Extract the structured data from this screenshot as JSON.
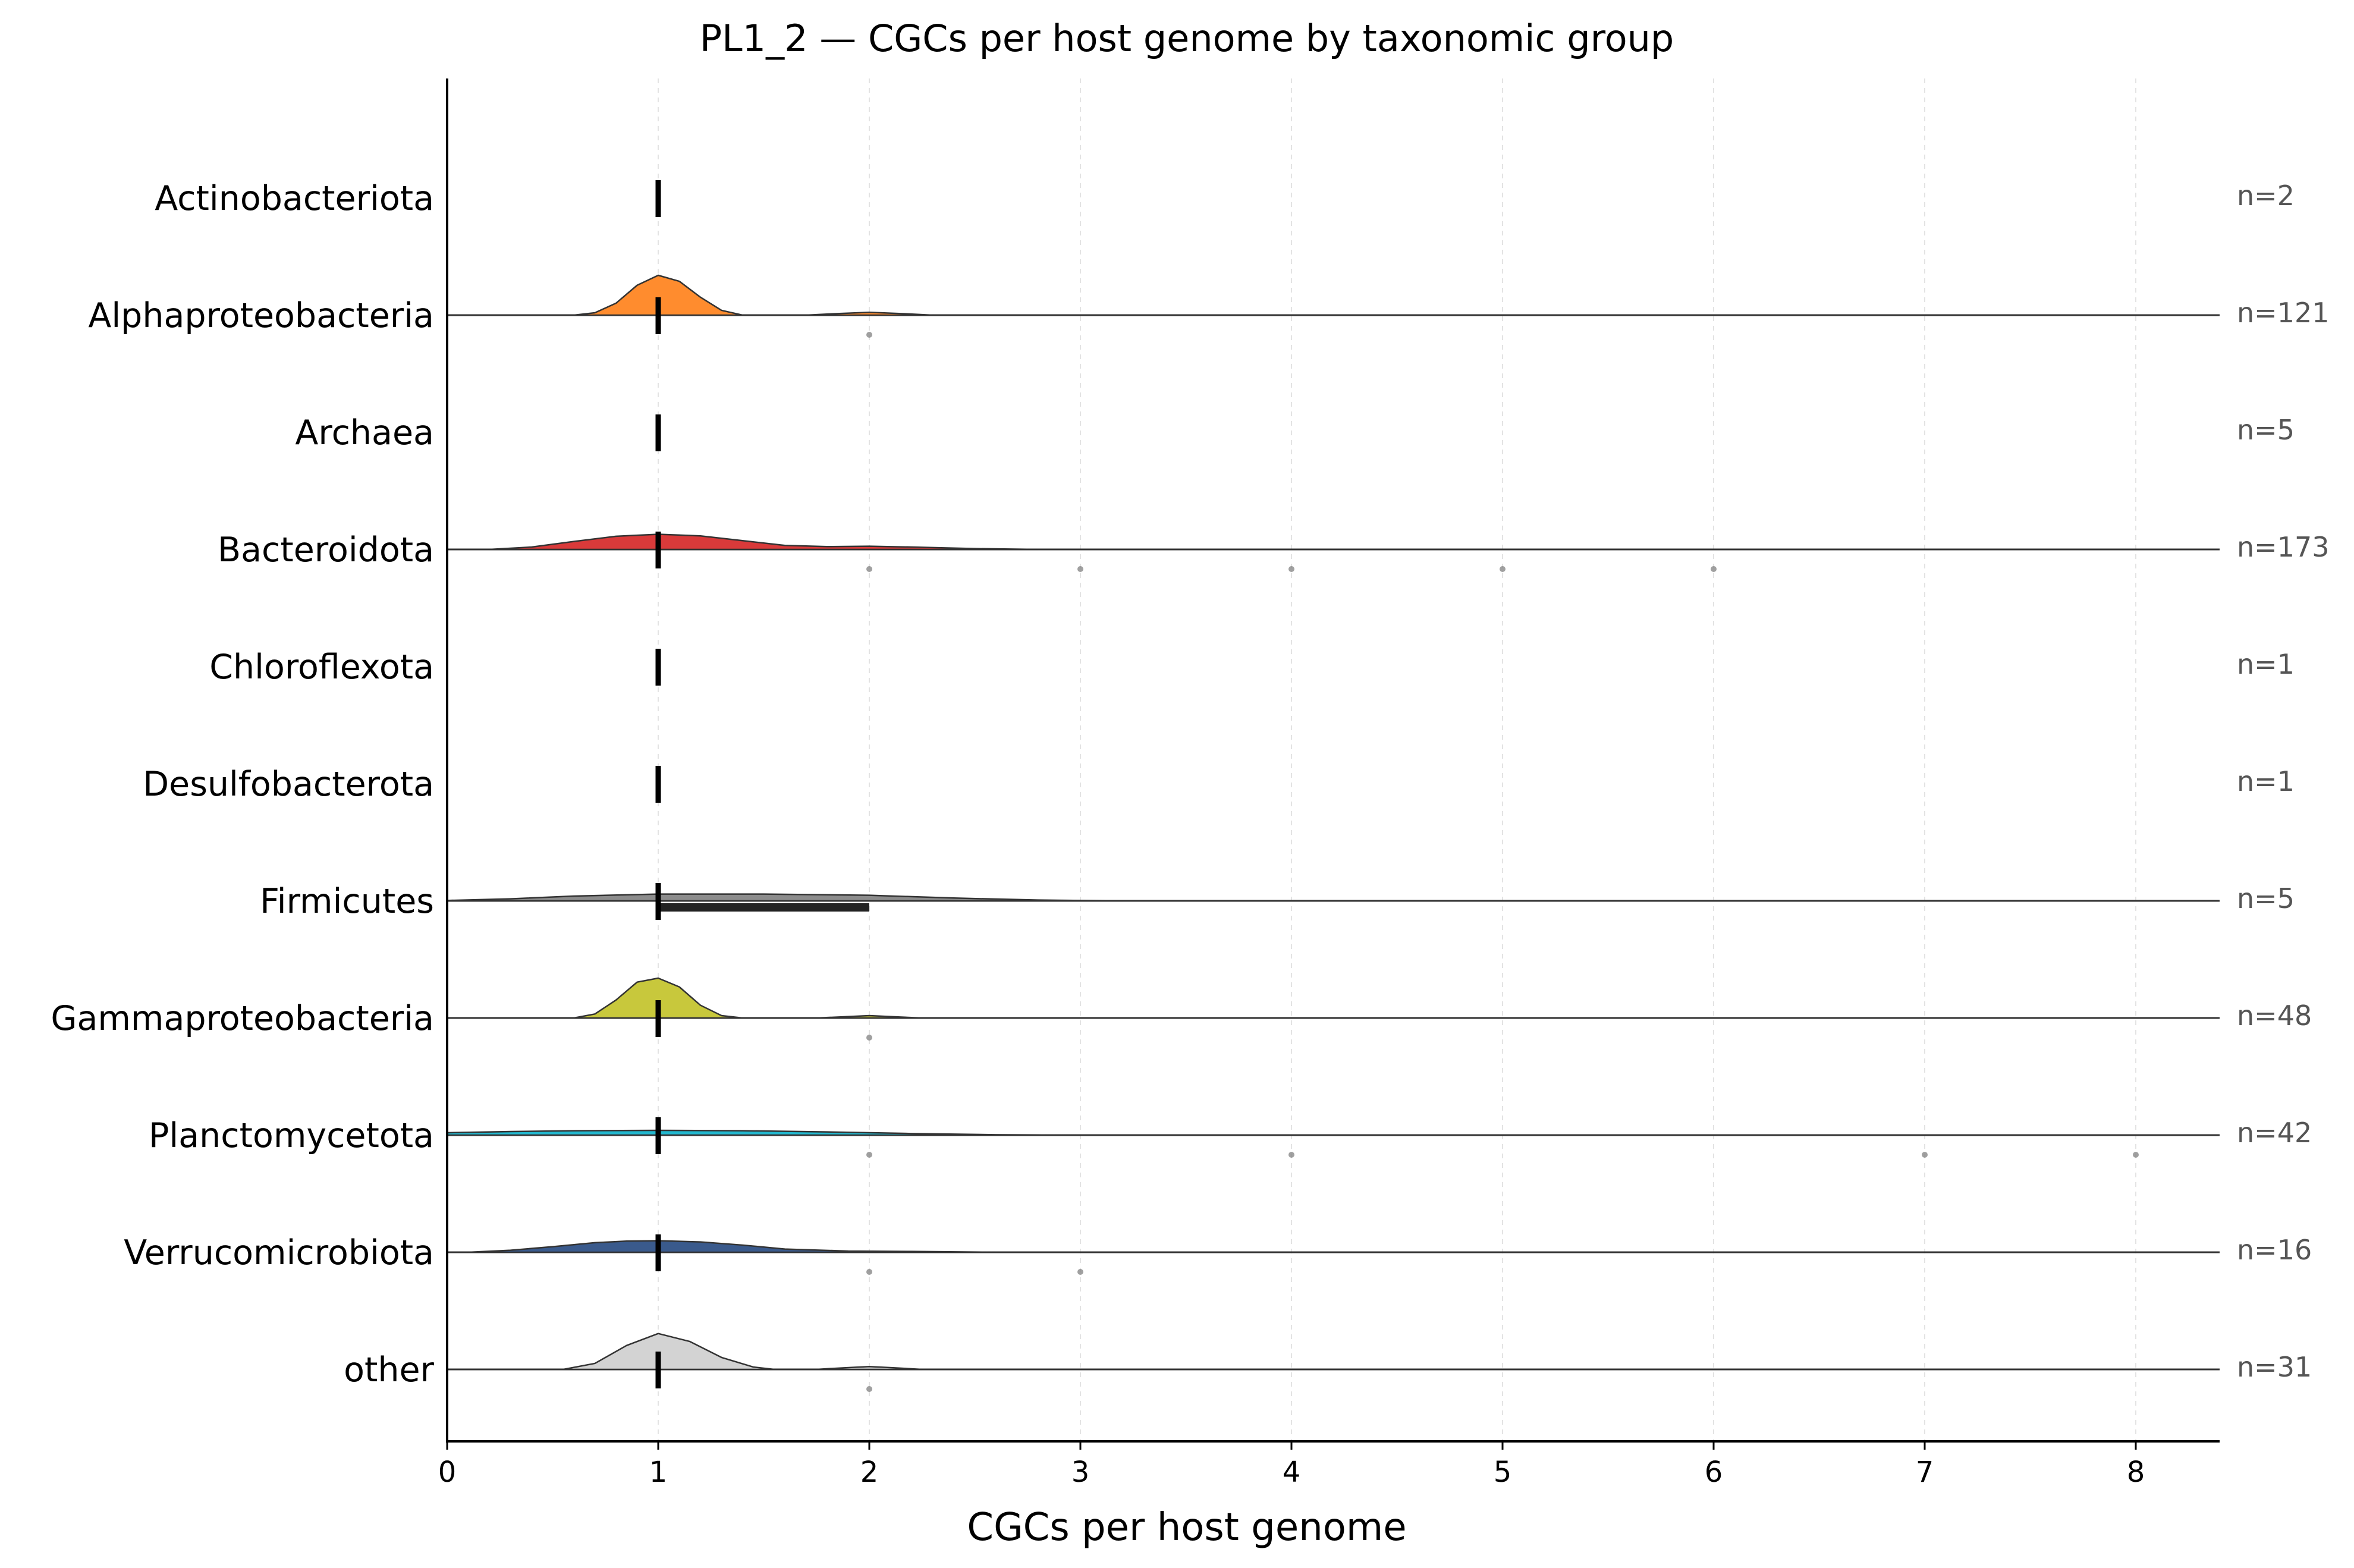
{
  "chart_data": {
    "type": "ridgeline",
    "title": "PL1_2 — CGCs per host genome by taxonomic group",
    "xlabel": "CGCs per host genome",
    "ylabel": "",
    "xlim": [
      0,
      8.4
    ],
    "xticks": [
      0,
      1,
      2,
      3,
      4,
      5,
      6,
      7,
      8
    ],
    "grid": "vertical dashed",
    "groups": [
      {
        "name": "Actinobacteriota",
        "n_label": "n=2",
        "color": null,
        "median": 1,
        "iqr": [
          1,
          1
        ],
        "density": [],
        "outliers": []
      },
      {
        "name": "Alphaproteobacteria",
        "n_label": "n=121",
        "color": "#FF8C2E",
        "median": 1,
        "iqr": [
          1,
          1
        ],
        "density": [
          [
            0.6,
            0
          ],
          [
            0.7,
            0.06
          ],
          [
            0.8,
            0.3
          ],
          [
            0.9,
            0.75
          ],
          [
            1.0,
            1.0
          ],
          [
            1.1,
            0.85
          ],
          [
            1.2,
            0.45
          ],
          [
            1.3,
            0.12
          ],
          [
            1.4,
            0
          ],
          [
            1.7,
            0
          ],
          [
            1.85,
            0.04
          ],
          [
            2.0,
            0.07
          ],
          [
            2.15,
            0.04
          ],
          [
            2.3,
            0
          ]
        ],
        "outliers": [
          2
        ]
      },
      {
        "name": "Archaea",
        "n_label": "n=5",
        "color": null,
        "median": 1,
        "iqr": [
          1,
          1
        ],
        "density": [],
        "outliers": []
      },
      {
        "name": "Bacteroidota",
        "n_label": "n=173",
        "color": "#D93A3A",
        "median": 1,
        "iqr": [
          1,
          1
        ],
        "density": [
          [
            0.2,
            0
          ],
          [
            0.4,
            0.06
          ],
          [
            0.6,
            0.2
          ],
          [
            0.8,
            0.33
          ],
          [
            1.0,
            0.38
          ],
          [
            1.2,
            0.34
          ],
          [
            1.4,
            0.22
          ],
          [
            1.6,
            0.1
          ],
          [
            1.8,
            0.07
          ],
          [
            2.0,
            0.08
          ],
          [
            2.2,
            0.06
          ],
          [
            2.5,
            0.02
          ],
          [
            2.8,
            0
          ]
        ],
        "outliers": [
          2,
          3,
          4,
          5,
          6
        ]
      },
      {
        "name": "Chloroflexota",
        "n_label": "n=1",
        "color": null,
        "median": 1,
        "iqr": [
          1,
          1
        ],
        "density": [],
        "outliers": []
      },
      {
        "name": "Desulfobacterota",
        "n_label": "n=1",
        "color": null,
        "median": 1,
        "iqr": [
          1,
          1
        ],
        "density": [],
        "outliers": []
      },
      {
        "name": "Firmicutes",
        "n_label": "n=5",
        "color": "#8C8C8C",
        "median": 1,
        "iqr": [
          1,
          2
        ],
        "density": [
          [
            0,
            0.01
          ],
          [
            0.3,
            0.05
          ],
          [
            0.6,
            0.12
          ],
          [
            1.0,
            0.17
          ],
          [
            1.5,
            0.17
          ],
          [
            2.0,
            0.14
          ],
          [
            2.4,
            0.07
          ],
          [
            2.8,
            0.02
          ],
          [
            3.2,
            0
          ]
        ],
        "outliers": []
      },
      {
        "name": "Gammaproteobacteria",
        "n_label": "n=48",
        "color": "#C8C83C",
        "median": 1,
        "iqr": [
          1,
          1
        ],
        "density": [
          [
            0.6,
            0
          ],
          [
            0.7,
            0.1
          ],
          [
            0.8,
            0.45
          ],
          [
            0.9,
            0.9
          ],
          [
            1.0,
            1.0
          ],
          [
            1.1,
            0.78
          ],
          [
            1.2,
            0.32
          ],
          [
            1.3,
            0.06
          ],
          [
            1.4,
            0
          ],
          [
            1.75,
            0
          ],
          [
            1.88,
            0.03
          ],
          [
            2.0,
            0.06
          ],
          [
            2.12,
            0.03
          ],
          [
            2.25,
            0
          ]
        ],
        "outliers": [
          2
        ]
      },
      {
        "name": "Planctomycetota",
        "n_label": "n=42",
        "color": "#22B8CF",
        "median": 1,
        "iqr": [
          1,
          1
        ],
        "density": [
          [
            0,
            0.06
          ],
          [
            0.3,
            0.09
          ],
          [
            0.6,
            0.11
          ],
          [
            1.0,
            0.12
          ],
          [
            1.4,
            0.11
          ],
          [
            1.8,
            0.08
          ],
          [
            2.2,
            0.04
          ],
          [
            2.6,
            0.01
          ],
          [
            3.0,
            0
          ]
        ],
        "outliers": [
          2,
          4,
          7,
          8
        ]
      },
      {
        "name": "Verrucomicrobiota",
        "n_label": "n=16",
        "color": "#3A5A8C",
        "median": 1,
        "iqr": [
          1,
          1
        ],
        "density": [
          [
            0.1,
            0
          ],
          [
            0.3,
            0.05
          ],
          [
            0.5,
            0.14
          ],
          [
            0.7,
            0.24
          ],
          [
            0.85,
            0.28
          ],
          [
            1.0,
            0.29
          ],
          [
            1.2,
            0.26
          ],
          [
            1.4,
            0.18
          ],
          [
            1.6,
            0.08
          ],
          [
            1.9,
            0.03
          ],
          [
            2.2,
            0.02
          ],
          [
            2.6,
            0
          ]
        ],
        "outliers": [
          2,
          3
        ]
      },
      {
        "name": "other",
        "n_label": "n=31",
        "color": "#D3D3D3",
        "median": 1,
        "iqr": [
          1,
          1
        ],
        "density": [
          [
            0.55,
            0
          ],
          [
            0.7,
            0.15
          ],
          [
            0.85,
            0.6
          ],
          [
            1.0,
            0.9
          ],
          [
            1.15,
            0.7
          ],
          [
            1.3,
            0.3
          ],
          [
            1.45,
            0.06
          ],
          [
            1.55,
            0
          ],
          [
            1.75,
            0
          ],
          [
            1.88,
            0.04
          ],
          [
            2.0,
            0.07
          ],
          [
            2.12,
            0.04
          ],
          [
            2.25,
            0
          ]
        ],
        "outliers": [
          2
        ]
      }
    ]
  }
}
